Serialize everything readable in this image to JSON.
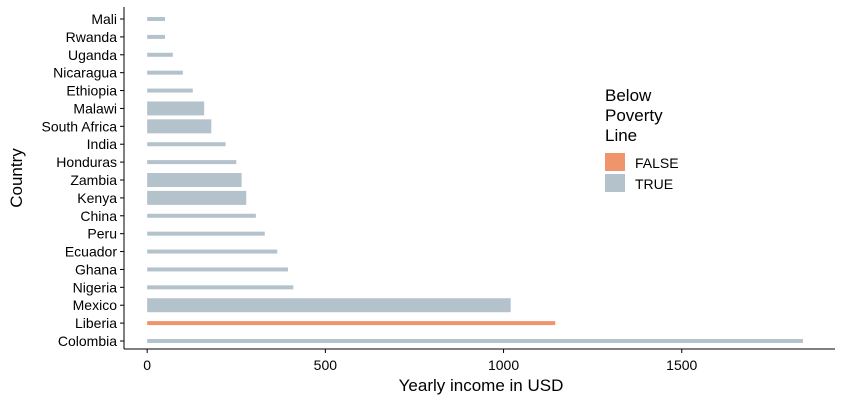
{
  "chart_data": {
    "type": "bar",
    "orientation": "horizontal",
    "xlabel": "Yearly income in USD",
    "ylabel": "Country",
    "xlim": [
      -65,
      1930
    ],
    "xticks": [
      0,
      500,
      1000,
      1500
    ],
    "grid": false,
    "legend": {
      "title_lines": [
        "Below",
        "Poverty",
        "Line"
      ],
      "placement": "right",
      "entries": [
        {
          "label": "FALSE",
          "color": "#f0946c"
        },
        {
          "label": "TRUE",
          "color": "#b4c2cc"
        }
      ]
    },
    "colors": {
      "FALSE": "#f0946c",
      "TRUE": "#b4c2cc"
    },
    "bars": [
      {
        "country": "Colombia",
        "value": 1840,
        "below_poverty_line": "TRUE",
        "thickness": "thin"
      },
      {
        "country": "Liberia",
        "value": 1145,
        "below_poverty_line": "FALSE",
        "thickness": "thin"
      },
      {
        "country": "Mexico",
        "value": 1020,
        "below_poverty_line": "TRUE",
        "thickness": "thick"
      },
      {
        "country": "Nigeria",
        "value": 410,
        "below_poverty_line": "TRUE",
        "thickness": "thin"
      },
      {
        "country": "Ghana",
        "value": 395,
        "below_poverty_line": "TRUE",
        "thickness": "thin"
      },
      {
        "country": "Ecuador",
        "value": 365,
        "below_poverty_line": "TRUE",
        "thickness": "thin"
      },
      {
        "country": "Peru",
        "value": 330,
        "below_poverty_line": "TRUE",
        "thickness": "thin"
      },
      {
        "country": "China",
        "value": 305,
        "below_poverty_line": "TRUE",
        "thickness": "thin"
      },
      {
        "country": "Kenya",
        "value": 278,
        "below_poverty_line": "TRUE",
        "thickness": "thick"
      },
      {
        "country": "Zambia",
        "value": 265,
        "below_poverty_line": "TRUE",
        "thickness": "thick"
      },
      {
        "country": "Honduras",
        "value": 250,
        "below_poverty_line": "TRUE",
        "thickness": "thin"
      },
      {
        "country": "India",
        "value": 220,
        "below_poverty_line": "TRUE",
        "thickness": "thin"
      },
      {
        "country": "South Africa",
        "value": 180,
        "below_poverty_line": "TRUE",
        "thickness": "thick"
      },
      {
        "country": "Malawi",
        "value": 160,
        "below_poverty_line": "TRUE",
        "thickness": "thick"
      },
      {
        "country": "Ethiopia",
        "value": 128,
        "below_poverty_line": "TRUE",
        "thickness": "thin"
      },
      {
        "country": "Nicaragua",
        "value": 100,
        "below_poverty_line": "TRUE",
        "thickness": "thin"
      },
      {
        "country": "Uganda",
        "value": 72,
        "below_poverty_line": "TRUE",
        "thickness": "thin"
      },
      {
        "country": "Rwanda",
        "value": 50,
        "below_poverty_line": "TRUE",
        "thickness": "thin"
      },
      {
        "country": "Mali",
        "value": 50,
        "below_poverty_line": "TRUE",
        "thickness": "thin"
      }
    ]
  }
}
